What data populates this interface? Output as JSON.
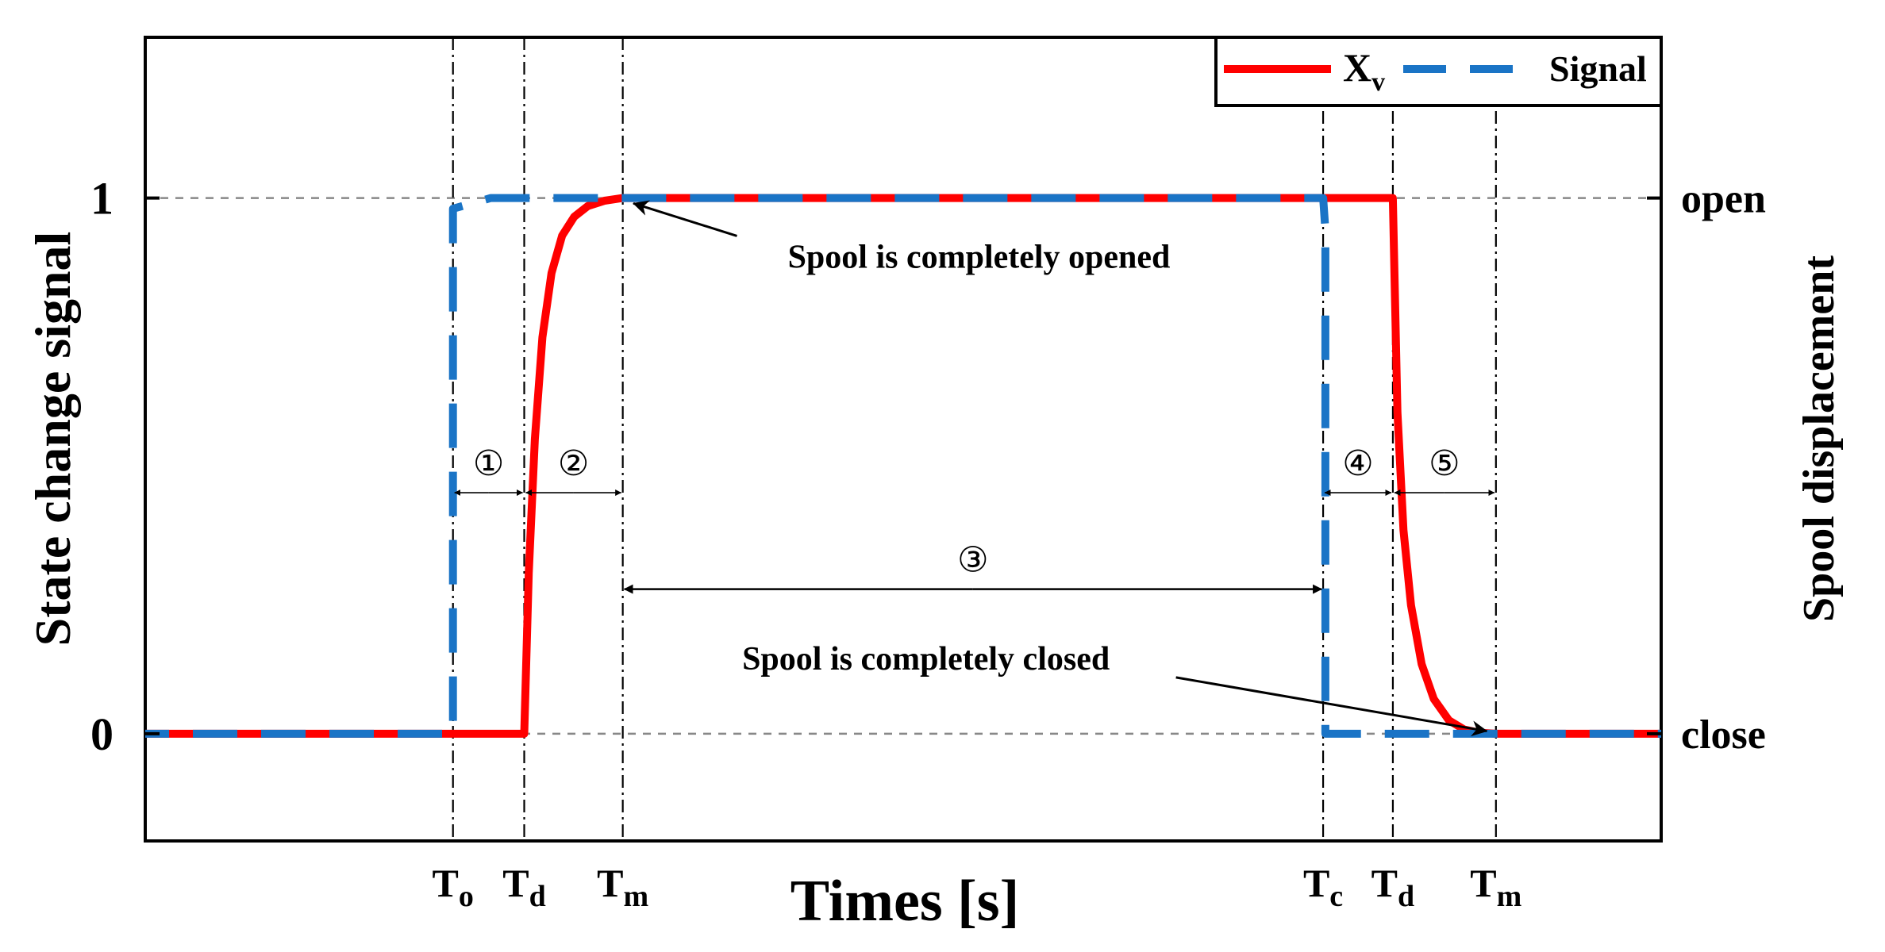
{
  "chart_data": {
    "type": "line",
    "title": "",
    "xlabel": "Times [s]",
    "ylabel_left": "State change signal",
    "ylabel_right": "Spool displacement",
    "xlim": [
      0,
      100
    ],
    "ylim": [
      -0.2,
      1.3
    ],
    "yticks_left": [
      {
        "value": 0,
        "label": "0"
      },
      {
        "value": 1,
        "label": "1"
      }
    ],
    "yticks_right": [
      {
        "value": 0,
        "label": "close"
      },
      {
        "value": 1,
        "label": "open"
      }
    ],
    "reference_lines_y": [
      0,
      1
    ],
    "event_markers": [
      {
        "x": 20.3,
        "label": "T",
        "sub": "o"
      },
      {
        "x": 25.0,
        "label": "T",
        "sub": "d"
      },
      {
        "x": 31.5,
        "label": "T",
        "sub": "m"
      },
      {
        "x": 77.7,
        "label": "T",
        "sub": "c"
      },
      {
        "x": 82.3,
        "label": "T",
        "sub": "d"
      },
      {
        "x": 89.1,
        "label": "T",
        "sub": "m"
      }
    ],
    "series": [
      {
        "name": "X",
        "name_sub": "v",
        "color": "#ff0000",
        "style": "solid",
        "x": [
          0,
          25.0,
          25.3,
          25.7,
          26.2,
          26.8,
          27.5,
          28.3,
          29.2,
          30.3,
          31.5,
          82.3,
          82.6,
          83.0,
          83.5,
          84.2,
          85.0,
          86.0,
          87.0,
          88.0,
          89.1,
          100
        ],
        "y": [
          0,
          0,
          0.3,
          0.55,
          0.74,
          0.86,
          0.93,
          0.965,
          0.985,
          0.995,
          1,
          1,
          0.6,
          0.38,
          0.24,
          0.13,
          0.065,
          0.025,
          0.008,
          0.002,
          0,
          0
        ]
      },
      {
        "name": "Signal",
        "color": "#1a74c6",
        "style": "dashed",
        "x": [
          0,
          20.3,
          20.3,
          22.8,
          31.5,
          77.7,
          77.85,
          77.85,
          100
        ],
        "y": [
          0,
          0,
          0.98,
          1.0,
          1.0,
          1.0,
          0.94,
          0,
          0
        ]
      }
    ],
    "interval_annotations": [
      {
        "label": "①",
        "x_start": 20.3,
        "x_end": 25.0,
        "y": 0.45
      },
      {
        "label": "②",
        "x_start": 25.0,
        "x_end": 31.5,
        "y": 0.45
      },
      {
        "label": "③",
        "x_start": 31.5,
        "x_end": 77.7,
        "y": 0.27
      },
      {
        "label": "④",
        "x_start": 77.7,
        "x_end": 82.3,
        "y": 0.45
      },
      {
        "label": "⑤",
        "x_start": 82.3,
        "x_end": 89.1,
        "y": 0.45
      }
    ],
    "text_annotations": [
      {
        "text": "Spool is completely opened",
        "point_x": 32.2,
        "point_y": 0.99,
        "text_x": 55.0,
        "text_y": 0.87
      },
      {
        "text": "Spool is completely closed",
        "point_x": 88.5,
        "point_y": 0.005,
        "text_x": 51.5,
        "text_y": 0.12
      }
    ],
    "legend": {
      "position": "top-right"
    },
    "grid": false
  }
}
